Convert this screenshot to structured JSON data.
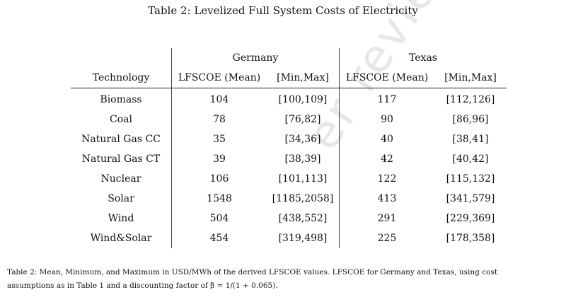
{
  "watermark": "er reviewe",
  "table": {
    "title": "Table 2: Levelized Full System Costs of Electricity",
    "group_headers": [
      "Germany",
      "Texas"
    ],
    "columns": [
      "Technology",
      "LFSCOE (Mean)",
      "[Min,Max]",
      "LFSCOE (Mean)",
      "[Min,Max]"
    ],
    "rows": [
      [
        "Biomass",
        "104",
        "[100,109]",
        "117",
        "[112,126]"
      ],
      [
        "Coal",
        "78",
        "[76,82]",
        "90",
        "[86,96]"
      ],
      [
        "Natural Gas CC",
        "35",
        "[34,36]",
        "40",
        "[38,41]"
      ],
      [
        "Natural Gas CT",
        "39",
        "[38,39]",
        "42",
        "[40,42]"
      ],
      [
        "Nuclear",
        "106",
        "[101,113]",
        "122",
        "[115,132]"
      ],
      [
        "Solar",
        "1548",
        "[1185,2058]",
        "413",
        "[341,579]"
      ],
      [
        "Wind",
        "504",
        "[438,552]",
        "291",
        "[229,369]"
      ],
      [
        "Wind&Solar",
        "454",
        "[319,498]",
        "225",
        "[178,358]"
      ]
    ]
  },
  "caption": {
    "line1": "Table 2: Mean, Minimum, and Maximum in USD/MWh of the derived LFSCOE values. LFSCOE for Germany and Texas, using cost",
    "line2": "assumptions as in Table 1 and a discounting factor of β = 1/(1 + 0.065)."
  }
}
